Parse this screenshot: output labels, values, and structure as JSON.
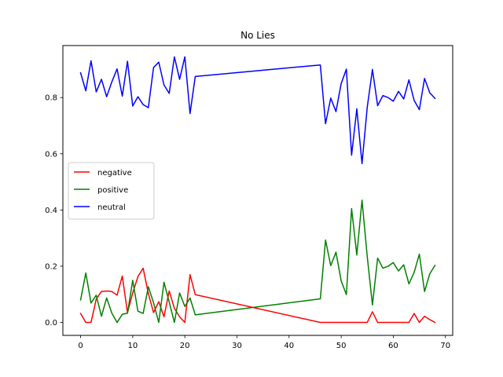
{
  "chart_data": {
    "type": "line",
    "title": "No Lies",
    "xlabel": "",
    "ylabel": "",
    "xlim": [
      -3.4,
      71.4
    ],
    "ylim": [
      -0.046,
      0.985
    ],
    "x_ticks": [
      0,
      10,
      20,
      30,
      40,
      50,
      60,
      70
    ],
    "y_ticks": [
      0.0,
      0.2,
      0.4,
      0.6,
      0.8
    ],
    "x_tick_labels": [
      "0",
      "10",
      "20",
      "30",
      "40",
      "50",
      "60",
      "70"
    ],
    "y_tick_labels": [
      "0.0",
      "0.2",
      "0.4",
      "0.6",
      "0.8"
    ],
    "grid": false,
    "legend_position": "center-left",
    "x": [
      0,
      1,
      2,
      3,
      4,
      5,
      6,
      7,
      8,
      9,
      10,
      11,
      12,
      13,
      14,
      15,
      16,
      17,
      18,
      19,
      20,
      21,
      22,
      46,
      47,
      48,
      49,
      50,
      51,
      52,
      53,
      54,
      55,
      56,
      57,
      58,
      59,
      60,
      61,
      62,
      63,
      64,
      65,
      66,
      67,
      68
    ],
    "series": [
      {
        "name": "negative",
        "color": "#ff0000",
        "values": [
          0.032,
          0.0,
          0.0,
          0.083,
          0.11,
          0.112,
          0.11,
          0.097,
          0.165,
          0.035,
          0.105,
          0.163,
          0.193,
          0.103,
          0.035,
          0.074,
          0.02,
          0.112,
          0.05,
          0.02,
          0.0,
          0.17,
          0.099,
          0.0,
          0.0,
          0.0,
          0.0,
          0.0,
          0.0,
          0.0,
          0.0,
          0.0,
          0.0,
          0.038,
          0.0,
          0.0,
          0.0,
          0.0,
          0.0,
          0.0,
          0.0,
          0.032,
          0.0,
          0.022,
          0.01,
          0.0
        ]
      },
      {
        "name": "positive",
        "color": "#008000",
        "values": [
          0.08,
          0.176,
          0.069,
          0.097,
          0.022,
          0.087,
          0.033,
          0.0,
          0.029,
          0.033,
          0.15,
          0.04,
          0.032,
          0.127,
          0.07,
          0.0,
          0.143,
          0.073,
          0.0,
          0.105,
          0.057,
          0.087,
          0.027,
          0.084,
          0.293,
          0.202,
          0.25,
          0.148,
          0.099,
          0.405,
          0.24,
          0.435,
          0.235,
          0.062,
          0.229,
          0.193,
          0.2,
          0.213,
          0.183,
          0.205,
          0.137,
          0.178,
          0.243,
          0.11,
          0.173,
          0.203
        ]
      },
      {
        "name": "neutral",
        "color": "#0000ff",
        "values": [
          0.888,
          0.824,
          0.931,
          0.82,
          0.865,
          0.803,
          0.856,
          0.902,
          0.805,
          0.929,
          0.77,
          0.803,
          0.775,
          0.764,
          0.907,
          0.926,
          0.845,
          0.815,
          0.945,
          0.865,
          0.945,
          0.743,
          0.875,
          0.916,
          0.707,
          0.798,
          0.75,
          0.85,
          0.901,
          0.595,
          0.76,
          0.565,
          0.765,
          0.9,
          0.771,
          0.807,
          0.8,
          0.787,
          0.822,
          0.795,
          0.863,
          0.79,
          0.757,
          0.868,
          0.817,
          0.797
        ]
      }
    ]
  }
}
